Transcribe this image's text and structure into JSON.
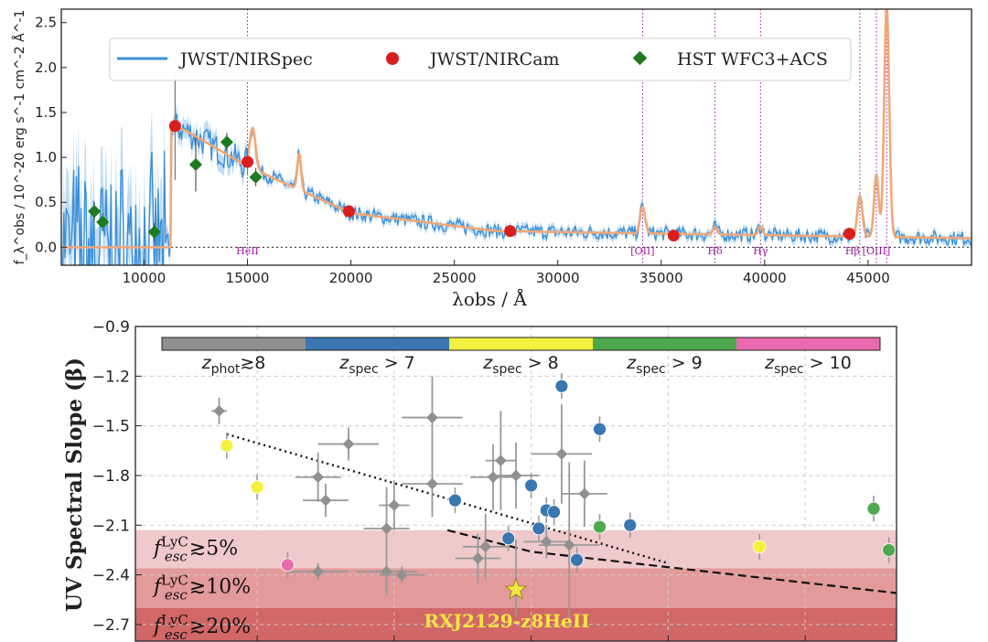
{
  "chart_data": [
    {
      "type": "line",
      "panel": "top",
      "xlabel": "λobs / Å",
      "ylabel": "f_λ^obs / 10^-20 erg s^-1 cm^-2 Å^-1",
      "xlim": [
        6000,
        50000
      ],
      "ylim": [
        -0.2,
        2.65
      ],
      "xticks": [
        "10000",
        "15000",
        "20000",
        "25000",
        "30000",
        "35000",
        "40000",
        "45000"
      ],
      "yticks": [
        "0.0",
        "0.5",
        "1.0",
        "1.5",
        "2.0",
        "2.5"
      ],
      "legend": {
        "placement": "top",
        "entries": [
          "JWST/NIRSpec",
          "JWST/NIRCam",
          "HST WFC3+ACS"
        ]
      },
      "colors": {
        "nirspec": "#3b8fd8",
        "model": "#f0a878",
        "nircam": "#d91e1e",
        "hst": "#1f7a1f",
        "lines": "#9a1a9a"
      },
      "emission_lines": [
        {
          "name": "HeII",
          "x": 15000
        },
        {
          "name": "[OII]",
          "x": 34100
        },
        {
          "name": "Hδ",
          "x": 37600
        },
        {
          "name": "Hγ",
          "x": 39800
        },
        {
          "name": "Hβ",
          "x": 44600
        },
        {
          "name": "[OIII]",
          "x": 45400
        },
        {
          "name": "",
          "x": 45900
        }
      ],
      "series": [
        {
          "name": "JWST/NIRCam",
          "points": [
            {
              "x": 11500,
              "y": 1.35,
              "err": 0.6
            },
            {
              "x": 15000,
              "y": 0.95,
              "err": 0.15
            },
            {
              "x": 19900,
              "y": 0.4,
              "err": 0.05
            },
            {
              "x": 27700,
              "y": 0.18,
              "err": 0.03
            },
            {
              "x": 35600,
              "y": 0.13,
              "err": 0.03
            },
            {
              "x": 44100,
              "y": 0.15,
              "err": 0.03
            }
          ]
        },
        {
          "name": "HST WFC3+ACS",
          "points": [
            {
              "x": 7600,
              "y": 0.4,
              "err": 0.1
            },
            {
              "x": 8000,
              "y": 0.28,
              "err": 0.1
            },
            {
              "x": 10500,
              "y": 0.17,
              "err": 0.1
            },
            {
              "x": 12500,
              "y": 0.92,
              "err": 0.3
            },
            {
              "x": 14000,
              "y": 1.17,
              "err": 0.1
            },
            {
              "x": 15400,
              "y": 0.78,
              "err": 0.1
            }
          ]
        }
      ]
    },
    {
      "type": "scatter",
      "panel": "bottom",
      "ylabel": "UV Spectral Slope (β)",
      "xlim": [
        0,
        1
      ],
      "ylim": [
        -2.8,
        -0.9
      ],
      "yticks": [
        "−0.9",
        "−1.2",
        "−1.5",
        "−1.8",
        "−2.1",
        "−2.4",
        "−2.7"
      ],
      "colorbar": [
        {
          "label": "zphot≳8",
          "color": "#909090"
        },
        {
          "label": "zspec > 7",
          "color": "#3a76b0"
        },
        {
          "label": "zspec > 8",
          "color": "#f3f040"
        },
        {
          "label": "zspec > 9",
          "color": "#4ea84e"
        },
        {
          "label": "zspec > 10",
          "color": "#ea6ab0"
        }
      ],
      "bands": [
        {
          "label": "f_esc^LyC ≳5%",
          "from": -2.13,
          "to": -2.36,
          "color": "#f0caca"
        },
        {
          "label": "f_esc^LyC ≳10%",
          "from": -2.36,
          "to": -2.6,
          "color": "#e39a9a"
        },
        {
          "label": "f_esc^LyC ≳20%",
          "from": -2.6,
          "to": -2.8,
          "color": "#d26767"
        }
      ],
      "highlight": {
        "label": "RXJ2129-z8HeII",
        "x": 0.5,
        "y": -2.49
      },
      "trend_dotted": [
        {
          "x": 0.12,
          "y": -1.55
        },
        {
          "x": 0.7,
          "y": -2.33
        }
      ],
      "trend_dashed": [
        {
          "x": 0.41,
          "y": -2.13
        },
        {
          "x": 0.52,
          "y": -2.26
        },
        {
          "x": 1.0,
          "y": -2.51
        }
      ],
      "series": [
        {
          "name": "zphot≳8",
          "points": [
            {
              "x": 0.11,
              "y": -1.41,
              "ex": 0.01,
              "ey": 0.08
            },
            {
              "x": 0.24,
              "y": -1.81,
              "ex": 0.03,
              "ey": 0.15
            },
            {
              "x": 0.25,
              "y": -1.95,
              "ex": 0.03,
              "ey": 0.1
            },
            {
              "x": 0.28,
              "y": -1.61,
              "ex": 0.04,
              "ey": 0.1
            },
            {
              "x": 0.33,
              "y": -2.12,
              "ex": 0.03,
              "ey": 0.25
            },
            {
              "x": 0.34,
              "y": -1.98,
              "ex": 0.02,
              "ey": 0.15
            },
            {
              "x": 0.33,
              "y": -2.38,
              "ex": 0.04,
              "ey": 0.15
            },
            {
              "x": 0.24,
              "y": -2.38,
              "ex": 0.04,
              "ey": 0.05
            },
            {
              "x": 0.39,
              "y": -1.45,
              "ex": 0.04,
              "ey": 0.25
            },
            {
              "x": 0.39,
              "y": -1.85,
              "ex": 0.04,
              "ey": 0.2
            },
            {
              "x": 0.45,
              "y": -2.3,
              "ex": 0.03,
              "ey": 0.15
            },
            {
              "x": 0.46,
              "y": -2.23,
              "ex": 0.03,
              "ey": 0.2
            },
            {
              "x": 0.47,
              "y": -1.81,
              "ex": 0.03,
              "ey": 0.2
            },
            {
              "x": 0.48,
              "y": -1.71,
              "ex": 0.02,
              "ey": 0.3
            },
            {
              "x": 0.5,
              "y": -1.8,
              "ex": 0.03,
              "ey": 0.2
            },
            {
              "x": 0.54,
              "y": -2.2,
              "ex": 0.03,
              "ey": 0.1
            },
            {
              "x": 0.56,
              "y": -1.67,
              "ex": 0.04,
              "ey": 0.3
            },
            {
              "x": 0.57,
              "y": -2.22,
              "ex": 0.04,
              "ey": 0.5
            },
            {
              "x": 0.59,
              "y": -1.91,
              "ex": 0.03,
              "ey": 0.2
            },
            {
              "x": 0.35,
              "y": -2.4,
              "ex": 0.03,
              "ey": 0.05
            }
          ]
        },
        {
          "name": "zspec > 7",
          "points": [
            {
              "x": 0.42,
              "y": -1.95
            },
            {
              "x": 0.49,
              "y": -2.18
            },
            {
              "x": 0.52,
              "y": -1.86
            },
            {
              "x": 0.53,
              "y": -2.12
            },
            {
              "x": 0.54,
              "y": -2.01
            },
            {
              "x": 0.55,
              "y": -2.02
            },
            {
              "x": 0.56,
              "y": -1.26
            },
            {
              "x": 0.58,
              "y": -2.31
            },
            {
              "x": 0.61,
              "y": -1.52
            },
            {
              "x": 0.65,
              "y": -2.1
            }
          ]
        },
        {
          "name": "zspec > 8",
          "points": [
            {
              "x": 0.12,
              "y": -1.62
            },
            {
              "x": 0.16,
              "y": -1.87
            },
            {
              "x": 0.82,
              "y": -2.23
            }
          ]
        },
        {
          "name": "zspec > 9",
          "points": [
            {
              "x": 0.61,
              "y": -2.11
            },
            {
              "x": 0.97,
              "y": -2.0
            },
            {
              "x": 0.99,
              "y": -2.25
            }
          ]
        },
        {
          "name": "zspec > 10",
          "points": [
            {
              "x": 0.2,
              "y": -2.34
            }
          ]
        }
      ]
    }
  ]
}
